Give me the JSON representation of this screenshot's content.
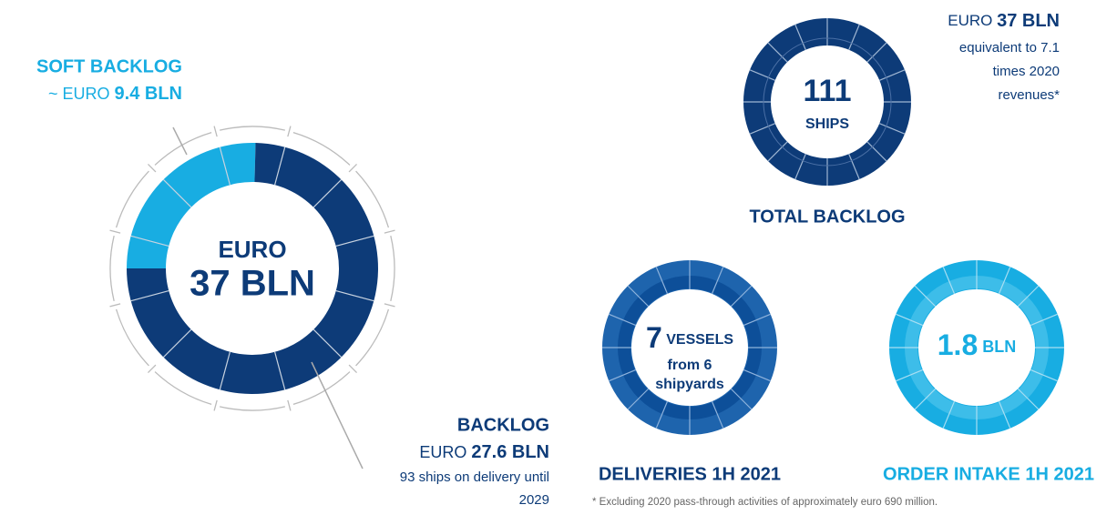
{
  "chart_data": {
    "type": "donut",
    "center_top": "EURO",
    "center_value": "37 BLN",
    "series": [
      {
        "name": "SOFT BACKLOG",
        "color": "#18ade2",
        "value": 9.4,
        "label_prefix": "~ EURO",
        "value_label": "9.4 BLN"
      },
      {
        "name": "BACKLOG",
        "color": "#0d3b78",
        "value": 27.6,
        "label_prefix": "EURO",
        "value_label": "27.6 BLN",
        "note": [
          "93 ships on delivery until",
          "2029"
        ]
      }
    ]
  },
  "total_backlog": {
    "ships_count": "111",
    "ships_unit": "SHIPS",
    "title": "TOTAL BACKLOG",
    "value_prefix": "EURO",
    "value": "37 BLN",
    "note": [
      "equivalent to 7.1",
      "times 2020",
      "revenues*"
    ]
  },
  "deliveries": {
    "count": "7",
    "unit": "VESSELS",
    "lines": [
      "from 6",
      "shipyards"
    ],
    "title": "DELIVERIES 1H 2021"
  },
  "order_intake": {
    "value": "1.8",
    "unit": "BLN",
    "title": "ORDER INTAKE 1H 2021"
  },
  "footnote": "* Excluding 2020 pass-through activities of approximately euro 690 million."
}
